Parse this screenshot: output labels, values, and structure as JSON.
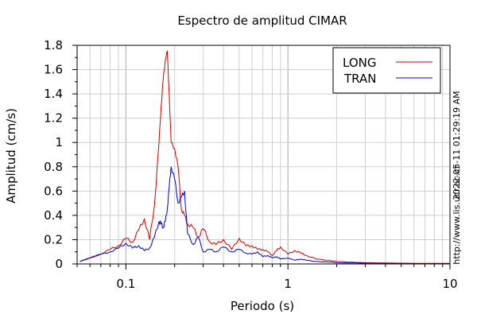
{
  "chart_data": {
    "type": "line",
    "title": "Espectro de amplitud CIMAR",
    "xlabel": "Periodo (s)",
    "ylabel": "Amplitud (cm/s)",
    "xscale": "log",
    "xlim": [
      0.05,
      10
    ],
    "ylim": [
      0,
      1.8
    ],
    "xticks": [
      {
        "value": 0.1,
        "label": "0.1"
      },
      {
        "value": 1,
        "label": "1"
      },
      {
        "value": 10,
        "label": "10"
      }
    ],
    "yticks": [
      {
        "value": 0,
        "label": "0"
      },
      {
        "value": 0.2,
        "label": "0.2"
      },
      {
        "value": 0.4,
        "label": "0.4"
      },
      {
        "value": 0.6,
        "label": "0.6"
      },
      {
        "value": 0.8,
        "label": "0.8"
      },
      {
        "value": 1,
        "label": "1"
      },
      {
        "value": 1.2,
        "label": "1.2"
      },
      {
        "value": 1.4,
        "label": "1.4"
      },
      {
        "value": 1.6,
        "label": "1.6"
      },
      {
        "value": 1.8,
        "label": "1.8"
      }
    ],
    "grid": true,
    "legend_position": "top-right",
    "series": [
      {
        "name": "LONG",
        "color": "#cc0000",
        "x": [
          0.052,
          0.06,
          0.07,
          0.08,
          0.09,
          0.1,
          0.11,
          0.12,
          0.13,
          0.14,
          0.15,
          0.16,
          0.165,
          0.17,
          0.175,
          0.18,
          0.185,
          0.19,
          0.2,
          0.21,
          0.22,
          0.23,
          0.24,
          0.26,
          0.28,
          0.3,
          0.33,
          0.36,
          0.4,
          0.45,
          0.5,
          0.55,
          0.6,
          0.65,
          0.7,
          0.75,
          0.8,
          0.85,
          0.9,
          1.0,
          1.1,
          1.2,
          1.3,
          1.5,
          1.8,
          2.0,
          2.5,
          3.0,
          4.0,
          5.0,
          7.0,
          10.0
        ],
        "y": [
          0.02,
          0.05,
          0.08,
          0.12,
          0.15,
          0.21,
          0.18,
          0.28,
          0.37,
          0.2,
          0.48,
          1.0,
          1.3,
          1.52,
          1.68,
          1.75,
          1.4,
          1.0,
          0.95,
          0.8,
          0.45,
          0.4,
          0.33,
          0.3,
          0.22,
          0.29,
          0.18,
          0.16,
          0.2,
          0.12,
          0.21,
          0.15,
          0.15,
          0.12,
          0.12,
          0.1,
          0.07,
          0.11,
          0.14,
          0.08,
          0.11,
          0.09,
          0.07,
          0.04,
          0.03,
          0.02,
          0.015,
          0.01,
          0.008,
          0.006,
          0.005,
          0.005
        ]
      },
      {
        "name": "TRAN",
        "color": "#0000cc",
        "x": [
          0.052,
          0.06,
          0.07,
          0.08,
          0.09,
          0.1,
          0.11,
          0.12,
          0.13,
          0.14,
          0.15,
          0.16,
          0.165,
          0.17,
          0.175,
          0.18,
          0.185,
          0.19,
          0.2,
          0.21,
          0.22,
          0.23,
          0.24,
          0.26,
          0.28,
          0.3,
          0.33,
          0.36,
          0.4,
          0.45,
          0.5,
          0.55,
          0.6,
          0.65,
          0.7,
          0.75,
          0.8,
          0.85,
          0.9,
          1.0,
          1.1,
          1.2,
          1.3,
          1.5,
          1.8,
          2.0,
          2.5,
          3.0,
          4.0,
          5.0,
          7.0,
          10.0
        ],
        "y": [
          0.02,
          0.05,
          0.08,
          0.1,
          0.13,
          0.17,
          0.13,
          0.15,
          0.11,
          0.13,
          0.22,
          0.35,
          0.33,
          0.3,
          0.35,
          0.45,
          0.63,
          0.8,
          0.7,
          0.5,
          0.55,
          0.6,
          0.25,
          0.16,
          0.22,
          0.1,
          0.12,
          0.1,
          0.14,
          0.1,
          0.12,
          0.09,
          0.08,
          0.1,
          0.06,
          0.07,
          0.05,
          0.06,
          0.04,
          0.05,
          0.03,
          0.04,
          0.03,
          0.02,
          0.015,
          0.01,
          0.008,
          0.006,
          0.005,
          0.004,
          0.003,
          0.003
        ]
      }
    ]
  },
  "side_texts": {
    "timestamp": "2022-05-11 01:29:19 AM",
    "url": "http://www.lis.ucr.ac.cr"
  }
}
